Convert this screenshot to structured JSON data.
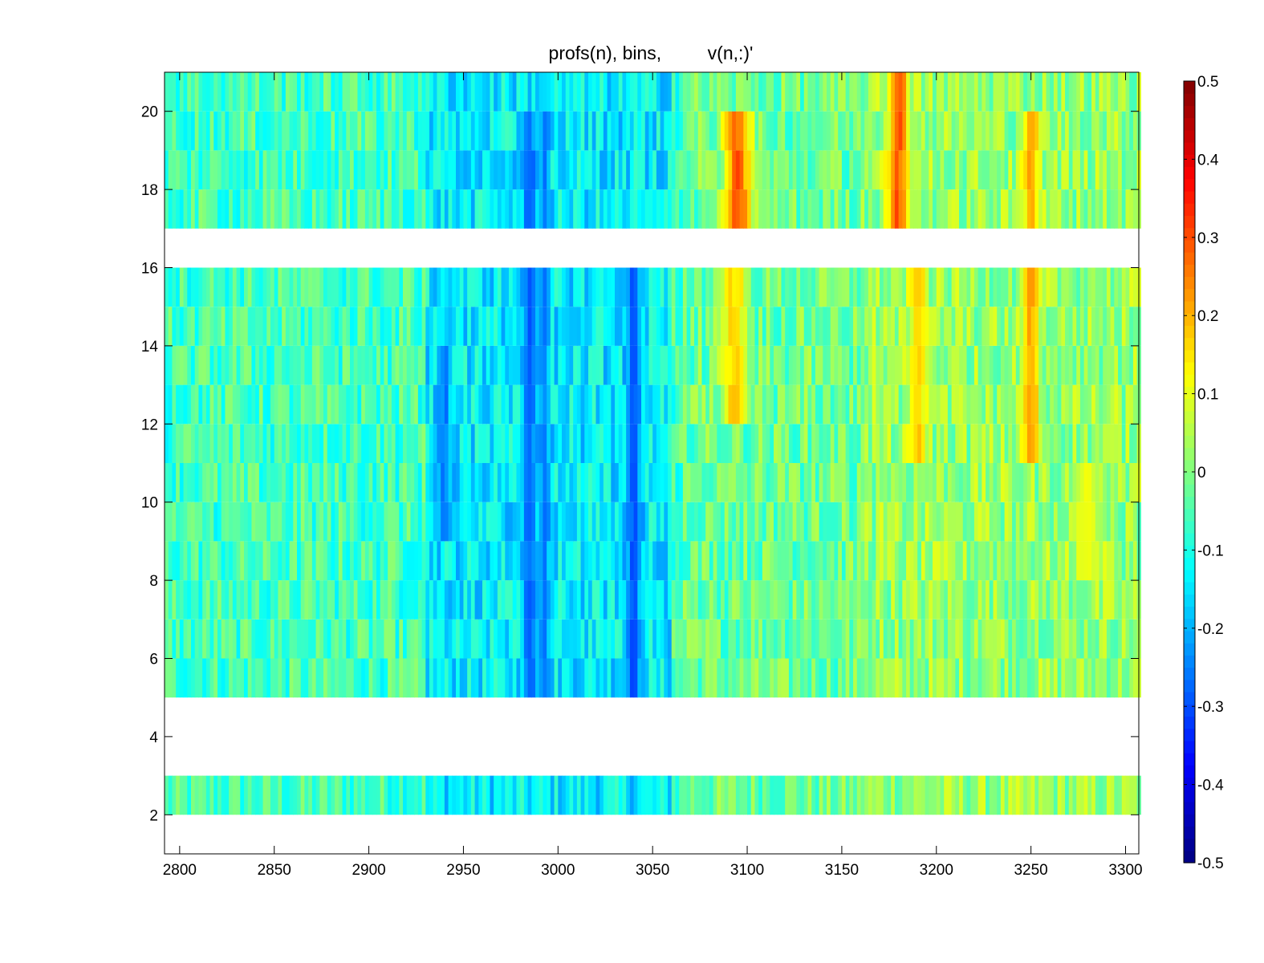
{
  "chart_data": {
    "type": "heatmap",
    "title": "profs(n), bins,         v(n,:)'",
    "xlabel": "",
    "ylabel": "",
    "xlim": [
      2792,
      3307
    ],
    "ylim": [
      1,
      21
    ],
    "x_ticks": [
      2800,
      2850,
      2900,
      2950,
      3000,
      3050,
      3100,
      3150,
      3200,
      3250,
      3300
    ],
    "y_ticks": [
      2,
      4,
      6,
      8,
      10,
      12,
      14,
      16,
      18,
      20
    ],
    "rows": [
      2,
      3,
      4,
      5,
      6,
      7,
      8,
      9,
      10,
      11,
      12,
      13,
      14,
      15,
      16,
      17,
      18,
      19,
      20
    ],
    "missing_rows": [
      3,
      4,
      16
    ],
    "colormap": "jet",
    "colorbar": {
      "clim": [
        -0.5,
        0.5
      ],
      "ticks": [
        -0.5,
        -0.4,
        -0.3,
        -0.2,
        -0.1,
        0,
        0.1,
        0.2,
        0.3,
        0.4,
        0.5
      ]
    },
    "profile_features": [
      {
        "x": 2940,
        "width": 8,
        "value": -0.28,
        "rows": [
          9,
          14
        ]
      },
      {
        "x": 2985,
        "width": 8,
        "value": -0.3,
        "rows": [
          5,
          20
        ]
      },
      {
        "x": 2993,
        "width": 6,
        "value": -0.27,
        "rows": [
          5,
          20
        ]
      },
      {
        "x": 3040,
        "width": 8,
        "value": -0.32,
        "rows": [
          5,
          16
        ]
      },
      {
        "x": 3095,
        "width": 16,
        "value": 0.32,
        "rows": [
          17,
          20
        ]
      },
      {
        "x": 3093,
        "width": 14,
        "value": 0.2,
        "rows": [
          12,
          16
        ]
      },
      {
        "x": 3180,
        "width": 12,
        "value": 0.33,
        "rows": [
          17,
          21
        ]
      },
      {
        "x": 3190,
        "width": 10,
        "value": 0.2,
        "rows": [
          11,
          16
        ]
      },
      {
        "x": 3250,
        "width": 10,
        "value": 0.24,
        "rows": [
          11,
          20
        ]
      },
      {
        "x": 3280,
        "width": 16,
        "value": 0.12,
        "rows": [
          8,
          11
        ]
      }
    ]
  }
}
